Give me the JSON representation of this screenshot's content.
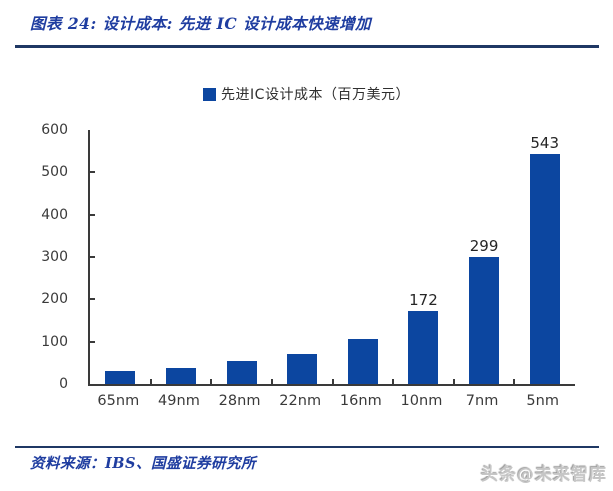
{
  "header": {
    "title": "图表 24:  设计成本:  先进 IC 设计成本快速增加"
  },
  "footer": {
    "source": "资料来源：IBS、国盛证券研究所",
    "watermark": "头条@未来智库"
  },
  "colors": {
    "bar_blue": "#0c46a0",
    "title_blue": "#1f3da0",
    "rule_navy": "#1f3864",
    "axis_gray": "#3a3a3a",
    "watermark_gray": "#c6c6c6"
  },
  "chart_data": {
    "type": "bar",
    "title": "",
    "legend": "先进IC设计成本（百万美元）",
    "legend_position": "top-center",
    "categories": [
      "65nm",
      "49nm",
      "28nm",
      "22nm",
      "16nm",
      "10nm",
      "7nm",
      "5nm"
    ],
    "values": [
      30,
      38,
      55,
      70,
      106,
      172,
      299,
      543
    ],
    "data_labels": [
      "",
      "",
      "",
      "",
      "",
      "172",
      "299",
      "543"
    ],
    "xlabel": "",
    "ylabel": "",
    "ylim": [
      0,
      600
    ],
    "yticks": [
      0,
      100,
      200,
      300,
      400,
      500,
      600
    ],
    "grid": false,
    "bar_color": "#0c46a0"
  }
}
